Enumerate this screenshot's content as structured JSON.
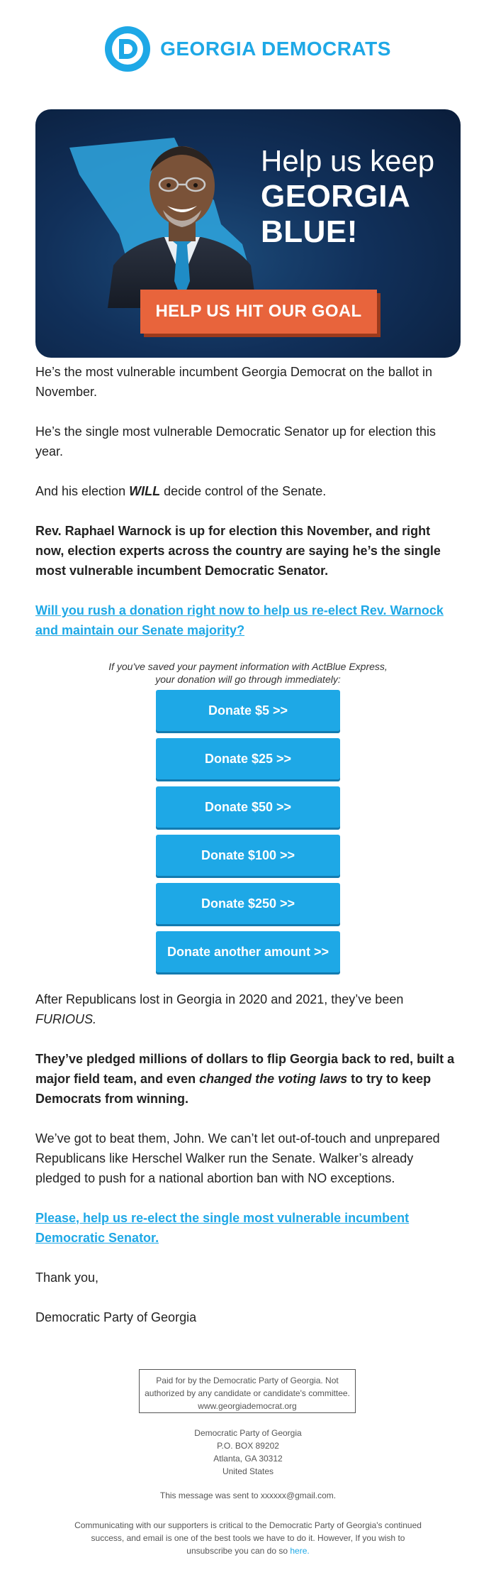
{
  "header": {
    "logo_text": "GEORGIA DEMOCRATS",
    "brand_color": "#1ea8e6",
    "logo_icon": "d-circle-logo-icon"
  },
  "hero": {
    "title_line1": "Help us keep",
    "title_line2": "GEORGIA",
    "title_line3": "BLUE!",
    "cta_label": "HELP US HIT OUR GOAL",
    "cta_color": "#e8643c",
    "background_color": "#11305a",
    "image": "portrait-photo-icon"
  },
  "body": {
    "p1": "He’s the most vulnerable incumbent Georgia Democrat on the ballot in November.",
    "p2": "He’s the single most vulnerable Democratic Senator up for election this year.",
    "p3_before": "And his election ",
    "p3_em": "WILL",
    "p3_after": " decide control of the Senate.",
    "p4": "Rev. Raphael Warnock is up for election this November, and right now, election experts across the country are saying he’s the single most vulnerable incumbent Democratic Senator.",
    "link1": "Will you rush a donation right now to help us re-elect Rev. Warnock and maintain our Senate majority?",
    "note_line1": "If you've saved your payment information with ActBlue Express,",
    "note_line2": "your donation will go through immediately:",
    "p5_before": "After Republicans lost in Georgia in 2020 and 2021, they’ve been ",
    "p5_em": "FURIOUS.",
    "p6_before": "They’ve pledged millions of dollars to flip Georgia back to red, built a major field team, and even ",
    "p6_em": "changed the voting laws",
    "p6_after": " to try to keep Democrats from winning.",
    "p7": "We’ve got to beat them, John. We can’t let out-of-touch and unprepared Republicans like Herschel Walker run the Senate. Walker’s already pledged to push for a national abortion ban with NO exceptions.",
    "link2": "Please, help us re-elect the single most vulnerable incumbent Democratic Senator.",
    "signoff": "Thank you,",
    "signature": "Democratic Party of Georgia"
  },
  "donate_buttons": [
    "Donate $5 >>",
    "Donate $25 >>",
    "Donate $50 >>",
    "Donate $100 >>",
    "Donate $250 >>",
    "Donate another amount >>"
  ],
  "footer": {
    "disclaimer_line1": "Paid for by the Democratic Party of Georgia. Not",
    "disclaimer_line2": "authorized by any candidate or candidate's committee.",
    "disclaimer_line3": "www.georgiademocrat.org",
    "addr1": "Democratic Party of Georgia",
    "addr2": "P.O. BOX 89202",
    "addr3": "Atlanta, GA 30312",
    "addr4": "United States",
    "sent_prefix": "This message was sent to ",
    "sent_email": "xxxxxx@gmail.com.",
    "unsub_line1": "Communicating with our supporters is critical to the Democratic Party of Georgia's continued",
    "unsub_line2": "success, and email is one of the best tools we have to do it. However, If you wish to",
    "unsub_line3_before": "unsubscribe you can do so ",
    "unsub_link": "here."
  }
}
